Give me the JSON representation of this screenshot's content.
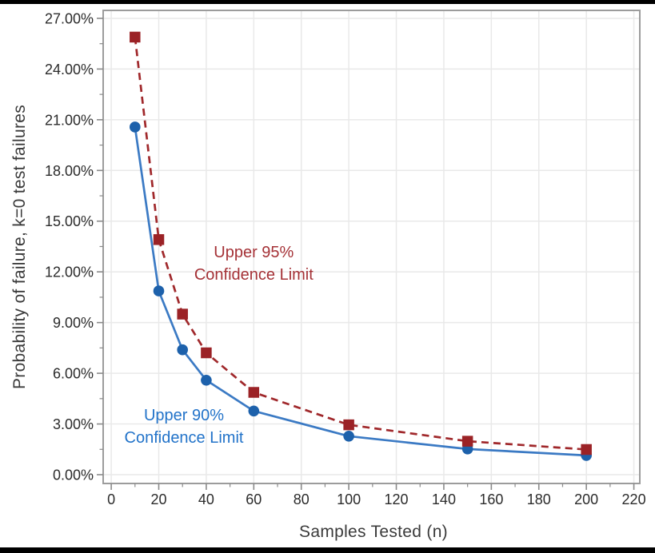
{
  "page": {
    "bg": "#FFFFFF",
    "top_bar_color": "#000000",
    "bottom_bar_color": "#000000"
  },
  "chart_data": {
    "type": "line",
    "title": "",
    "xlabel": "Samples Tested (n)",
    "ylabel": "Probability of failure, k=0 test failures",
    "x": [
      10,
      20,
      30,
      40,
      60,
      100,
      150,
      200
    ],
    "series": [
      {
        "name": "Upper 95% Confidence Limit",
        "values": [
          25.89,
          13.91,
          9.5,
          7.21,
          4.87,
          2.95,
          1.98,
          1.49
        ],
        "marker": "square",
        "line_style": "dashed",
        "marker_color": "#9B2226",
        "line_color": "#A0282B",
        "label_color": "#A53237"
      },
      {
        "name": "Upper 90% Confidence Limit",
        "values": [
          20.57,
          10.87,
          7.39,
          5.59,
          3.77,
          2.28,
          1.52,
          1.14
        ],
        "marker": "circle",
        "line_style": "solid",
        "marker_color": "#1D61AB",
        "line_color": "#3B7AC4",
        "label_color": "#2273C9"
      }
    ],
    "xlim": [
      -3.4,
      222.5
    ],
    "ylim": [
      -0.52,
      27.47
    ],
    "x_ticks": [
      0,
      20,
      40,
      60,
      80,
      100,
      120,
      140,
      160,
      180,
      200,
      220
    ],
    "x_tick_labels": [
      "0",
      "20",
      "40",
      "60",
      "80",
      "100",
      "120",
      "140",
      "160",
      "180",
      "200",
      "220"
    ],
    "x_minor_step": 10,
    "y_ticks": [
      0,
      3,
      6,
      9,
      12,
      15,
      18,
      21,
      24,
      27
    ],
    "y_tick_labels": [
      "0.00%",
      "3.00%",
      "6.00%",
      "9.00%",
      "12.00%",
      "15.00%",
      "18.00%",
      "21.00%",
      "24.00%",
      "27.00%"
    ],
    "y_minor_step": 1.5,
    "grid": true,
    "grid_color": "#E9E9E9",
    "frame_color": "#9C9C9C",
    "tick_color": "#8A8A8A",
    "tick_label_color": "#2B2B2B",
    "axis_title_color": "#3A3A3A",
    "legend_position": "inline-annotations",
    "annotations": [
      {
        "lines": [
          "Upper 95%",
          "Confidence Limit"
        ],
        "color": "#A53237",
        "x": 60.0,
        "y": 13.2
      },
      {
        "lines": [
          "Upper 90%",
          "Confidence Limit"
        ],
        "color": "#2273C9",
        "x": 30.6,
        "y": 3.55
      }
    ]
  }
}
